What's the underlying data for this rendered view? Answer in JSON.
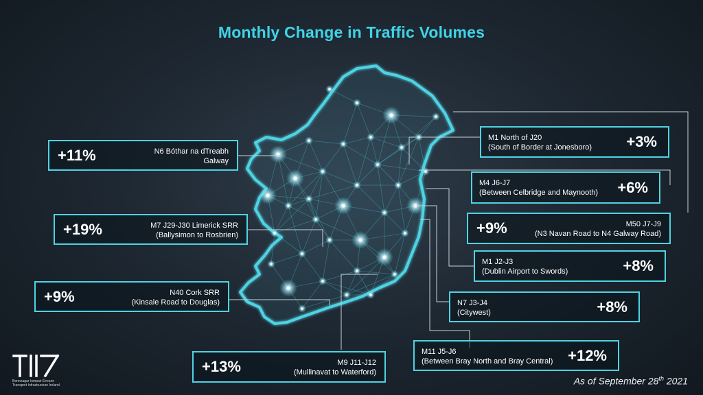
{
  "title": "Monthly Change in Traffic Volumes",
  "date_prefix": "As of September 28",
  "date_suffix": "th",
  "date_year": " 2021",
  "logo": {
    "mark": "TII",
    "line1": "Bonneagar Iompair Éireann",
    "line2": "Transport Infrastructure Ireland"
  },
  "callouts_left": [
    {
      "pct": "+11%",
      "line1": "N6 Bóthar na dTreabh",
      "line2": "Galway"
    },
    {
      "pct": "+19%",
      "line1": "M7 J29-J30 Limerick SRR",
      "line2": "(Ballysimon to Rosbrien)"
    },
    {
      "pct": "+9%",
      "line1": "N40 Cork SRR",
      "line2": "(Kinsale Road to Douglas)"
    },
    {
      "pct": "+13%",
      "line1": "M9 J11-J12",
      "line2": "(Mullinavat to Waterford)"
    }
  ],
  "callouts_right": [
    {
      "pct": "+3%",
      "line1": "M1 North of J20",
      "line2": "(South of Border at Jonesboro)"
    },
    {
      "pct": "+6%",
      "line1": "M4 J6-J7",
      "line2": "(Between Celbridge and Maynooth)"
    },
    {
      "pct": "+9%",
      "line1": "M50 J7-J9",
      "line2": "(N3 Navan Road to N4 Galway Road)"
    },
    {
      "pct": "+8%",
      "line1": "M1 J2-J3",
      "line2": "(Dublin Airport to Swords)"
    },
    {
      "pct": "+8%",
      "line1": "N7 J3-J4",
      "line2": "(Citywest)"
    },
    {
      "pct": "+12%",
      "line1": "M11 J5-J6",
      "line2": "(Between Bray North and Bray Central)"
    }
  ],
  "colors": {
    "accent": "#4fd3e3",
    "title": "#3fd4e6"
  }
}
